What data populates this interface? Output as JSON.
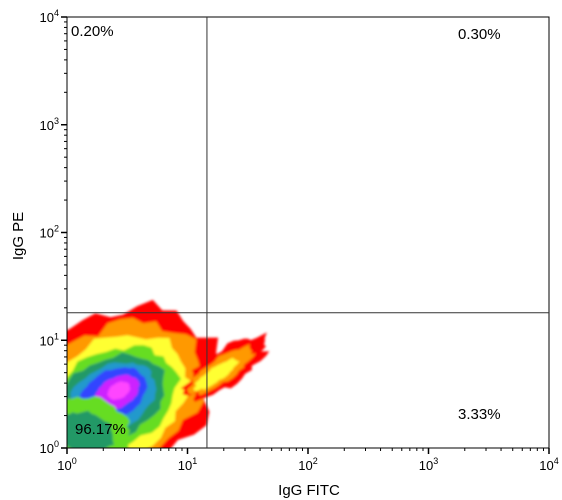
{
  "chart_data": {
    "type": "heatmap",
    "subtype": "flow-cytometry-density-plot",
    "xlabel": "IgG FITC",
    "ylabel": "IgG PE",
    "x_scale": "log",
    "y_scale": "log",
    "xlim": [
      1,
      10000
    ],
    "ylim": [
      1,
      10000
    ],
    "x_ticks": [
      {
        "base": "10",
        "exp": "0",
        "value": 1
      },
      {
        "base": "10",
        "exp": "1",
        "value": 10
      },
      {
        "base": "10",
        "exp": "2",
        "value": 100
      },
      {
        "base": "10",
        "exp": "3",
        "value": 1000
      },
      {
        "base": "10",
        "exp": "4",
        "value": 10000
      }
    ],
    "y_ticks": [
      {
        "base": "10",
        "exp": "0",
        "value": 1
      },
      {
        "base": "10",
        "exp": "1",
        "value": 10
      },
      {
        "base": "10",
        "exp": "2",
        "value": 100
      },
      {
        "base": "10",
        "exp": "3",
        "value": 1000
      },
      {
        "base": "10",
        "exp": "4",
        "value": 10000
      }
    ],
    "gate": {
      "x": 14.5,
      "y": 18
    },
    "quadrants": [
      {
        "position": "upper-left",
        "label": "0.20%"
      },
      {
        "position": "upper-right",
        "label": "0.30%"
      },
      {
        "position": "lower-left",
        "label": "96.17%"
      },
      {
        "position": "lower-right",
        "label": "3.33%"
      }
    ],
    "density_peak": {
      "x": 2.8,
      "y": 5
    },
    "density_colors": [
      "#ff0000",
      "#ff9900",
      "#ffff33",
      "#66dd22",
      "#229966",
      "#2299cc",
      "#3344ff",
      "#cc22ff",
      "#ff44ff"
    ],
    "grid": false,
    "legend": "none"
  }
}
